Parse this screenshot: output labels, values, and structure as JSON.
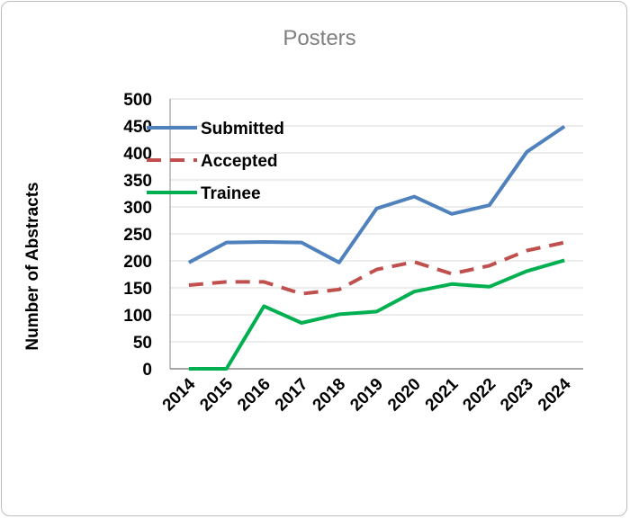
{
  "chart_data": {
    "type": "line",
    "title": "Posters",
    "xlabel": "",
    "ylabel": "Number of Abstracts",
    "categories": [
      "2014",
      "2015",
      "2016",
      "2017",
      "2018",
      "2019",
      "2020",
      "2021",
      "2022",
      "2023",
      "2024"
    ],
    "ylim": [
      0,
      500
    ],
    "yticks": [
      0,
      50,
      100,
      150,
      200,
      250,
      300,
      350,
      400,
      450,
      500
    ],
    "grid": true,
    "legend": "top-left",
    "series": [
      {
        "name": "Submitted",
        "color": "#4f81bd",
        "dash": "solid",
        "values": [
          197,
          234,
          235,
          234,
          197,
          297,
          319,
          287,
          303,
          402,
          449
        ]
      },
      {
        "name": "Accepted",
        "color": "#c0504d",
        "dash": "dashed",
        "values": [
          155,
          161,
          161,
          139,
          147,
          184,
          198,
          176,
          191,
          219,
          234
        ]
      },
      {
        "name": "Trainee",
        "color": "#00b050",
        "dash": "solid",
        "values": [
          0,
          0,
          116,
          85,
          101,
          106,
          143,
          157,
          152,
          181,
          201
        ]
      }
    ]
  }
}
